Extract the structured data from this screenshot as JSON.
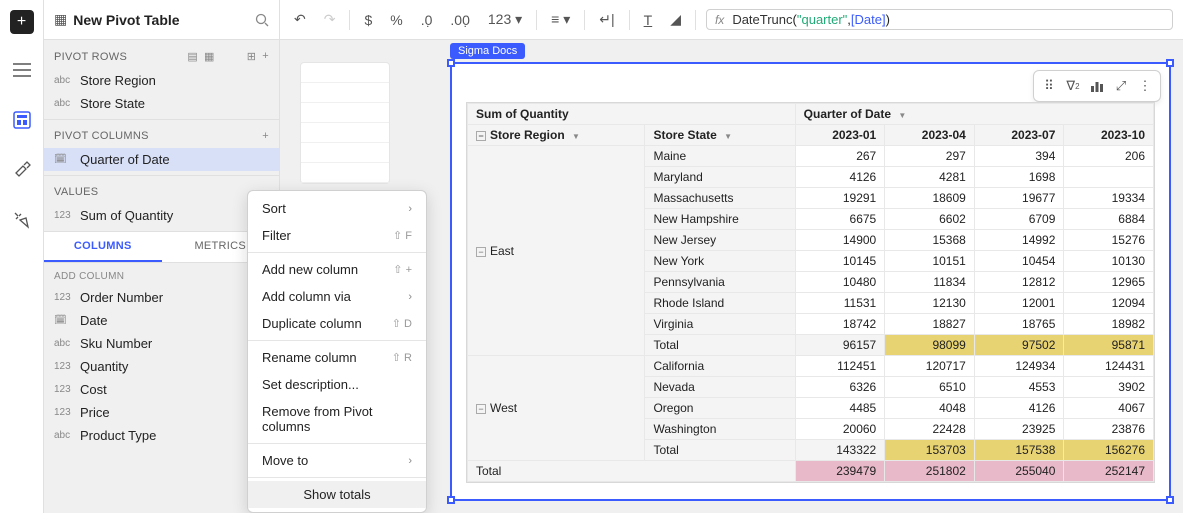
{
  "panel": {
    "title": "New Pivot Table",
    "sections": {
      "pivot_rows": {
        "label": "PIVOT ROWS",
        "items": [
          "Store Region",
          "Store State"
        ]
      },
      "pivot_columns": {
        "label": "PIVOT COLUMNS",
        "items": [
          "Quarter of Date"
        ]
      },
      "values": {
        "label": "VALUES",
        "items": [
          "Sum of Quantity"
        ]
      }
    },
    "tabs": {
      "columns": "COLUMNS",
      "metrics": "METRICS"
    },
    "add_column_label": "ADD COLUMN",
    "available_columns": [
      {
        "type": "123",
        "name": "Order Number"
      },
      {
        "type": "cal",
        "name": "Date"
      },
      {
        "type": "abc",
        "name": "Sku Number"
      },
      {
        "type": "123",
        "name": "Quantity"
      },
      {
        "type": "123",
        "name": "Cost"
      },
      {
        "type": "123",
        "name": "Price"
      },
      {
        "type": "abc",
        "name": "Product Type"
      }
    ]
  },
  "toolbar": {
    "dropdown_label": "123"
  },
  "formula": {
    "fn": "DateTrunc",
    "arg_str": "\"quarter\"",
    "arg_col": "[Date]"
  },
  "element_label": "Sigma Docs",
  "context_menu": {
    "sort": "Sort",
    "filter": "Filter",
    "filter_sc": "⇧  F",
    "add_new": "Add new column",
    "add_new_sc": "⇧  +",
    "add_via": "Add column via",
    "duplicate": "Duplicate column",
    "duplicate_sc": "⇧  D",
    "rename": "Rename column",
    "rename_sc": "⇧  R",
    "set_desc": "Set description...",
    "remove": "Remove from Pivot columns",
    "move_to": "Move to",
    "show_totals": "Show totals"
  },
  "pivot": {
    "measure_header": "Sum of Quantity",
    "col_dim_header": "Quarter of Date",
    "row_dim1": "Store Region",
    "row_dim2": "Store State",
    "col_headers": [
      "2023-01",
      "2023-04",
      "2023-07",
      "2023-10"
    ],
    "regions": [
      {
        "name": "East",
        "rows": [
          {
            "state": "Maine",
            "v": [
              267,
              297,
              394,
              206
            ]
          },
          {
            "state": "Maryland",
            "v": [
              4126,
              4281,
              1698,
              null
            ]
          },
          {
            "state": "Massachusetts",
            "v": [
              19291,
              18609,
              19677,
              19334
            ]
          },
          {
            "state": "New Hampshire",
            "v": [
              6675,
              6602,
              6709,
              6884
            ]
          },
          {
            "state": "New Jersey",
            "v": [
              14900,
              15368,
              14992,
              15276
            ]
          },
          {
            "state": "New York",
            "v": [
              10145,
              10151,
              10454,
              10130
            ]
          },
          {
            "state": "Pennsylvania",
            "v": [
              10480,
              11834,
              12812,
              12965
            ]
          },
          {
            "state": "Rhode Island",
            "v": [
              11531,
              12130,
              12001,
              12094
            ]
          },
          {
            "state": "Virginia",
            "v": [
              18742,
              18827,
              18765,
              18982
            ]
          }
        ],
        "total": [
          96157,
          98099,
          97502,
          95871
        ]
      },
      {
        "name": "West",
        "rows": [
          {
            "state": "California",
            "v": [
              112451,
              120717,
              124934,
              124431
            ]
          },
          {
            "state": "Nevada",
            "v": [
              6326,
              6510,
              4553,
              3902
            ]
          },
          {
            "state": "Oregon",
            "v": [
              4485,
              4048,
              4126,
              4067
            ]
          },
          {
            "state": "Washington",
            "v": [
              20060,
              22428,
              23925,
              23876
            ]
          }
        ],
        "total": [
          143322,
          153703,
          157538,
          156276
        ]
      }
    ],
    "grand_total_label": "Total",
    "grand_total": [
      239479,
      251802,
      255040,
      252147
    ],
    "subtotal_label": "Total",
    "colors": {
      "subtotal_bg": "#e8d373",
      "grandtotal_bg": "#e8b9c8",
      "header_bg": "#f4f4f4",
      "selection": "#3b5bff"
    }
  }
}
